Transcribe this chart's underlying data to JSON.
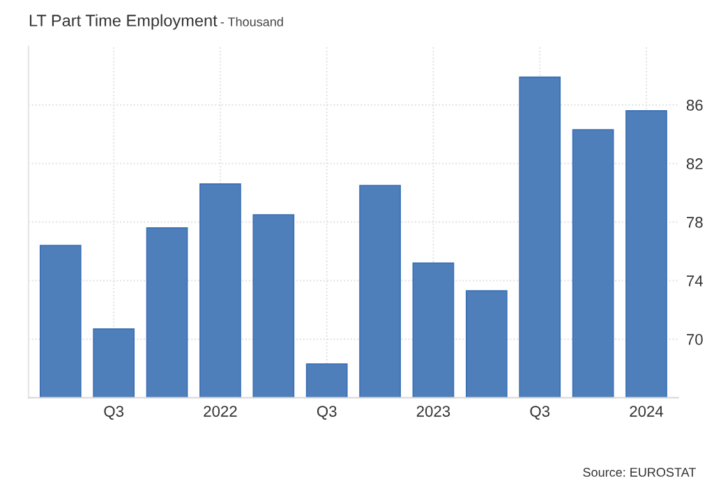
{
  "chart_data": {
    "type": "bar",
    "title": "LT Part Time Employment",
    "subtitle": "- Thousand",
    "categories": [
      null,
      "Q3",
      null,
      "2022",
      null,
      "Q3",
      null,
      "2023",
      null,
      "Q3",
      null,
      "2024"
    ],
    "values": [
      76.4,
      70.7,
      77.6,
      80.6,
      78.5,
      68.3,
      80.5,
      75.2,
      73.3,
      87.9,
      84.3,
      85.6
    ],
    "color": "#4f7fbb",
    "ylim": [
      66,
      90
    ],
    "yticks": [
      70,
      74,
      78,
      82,
      86
    ],
    "grid": true,
    "annotations": [
      "Source: EUROSTAT"
    ]
  }
}
